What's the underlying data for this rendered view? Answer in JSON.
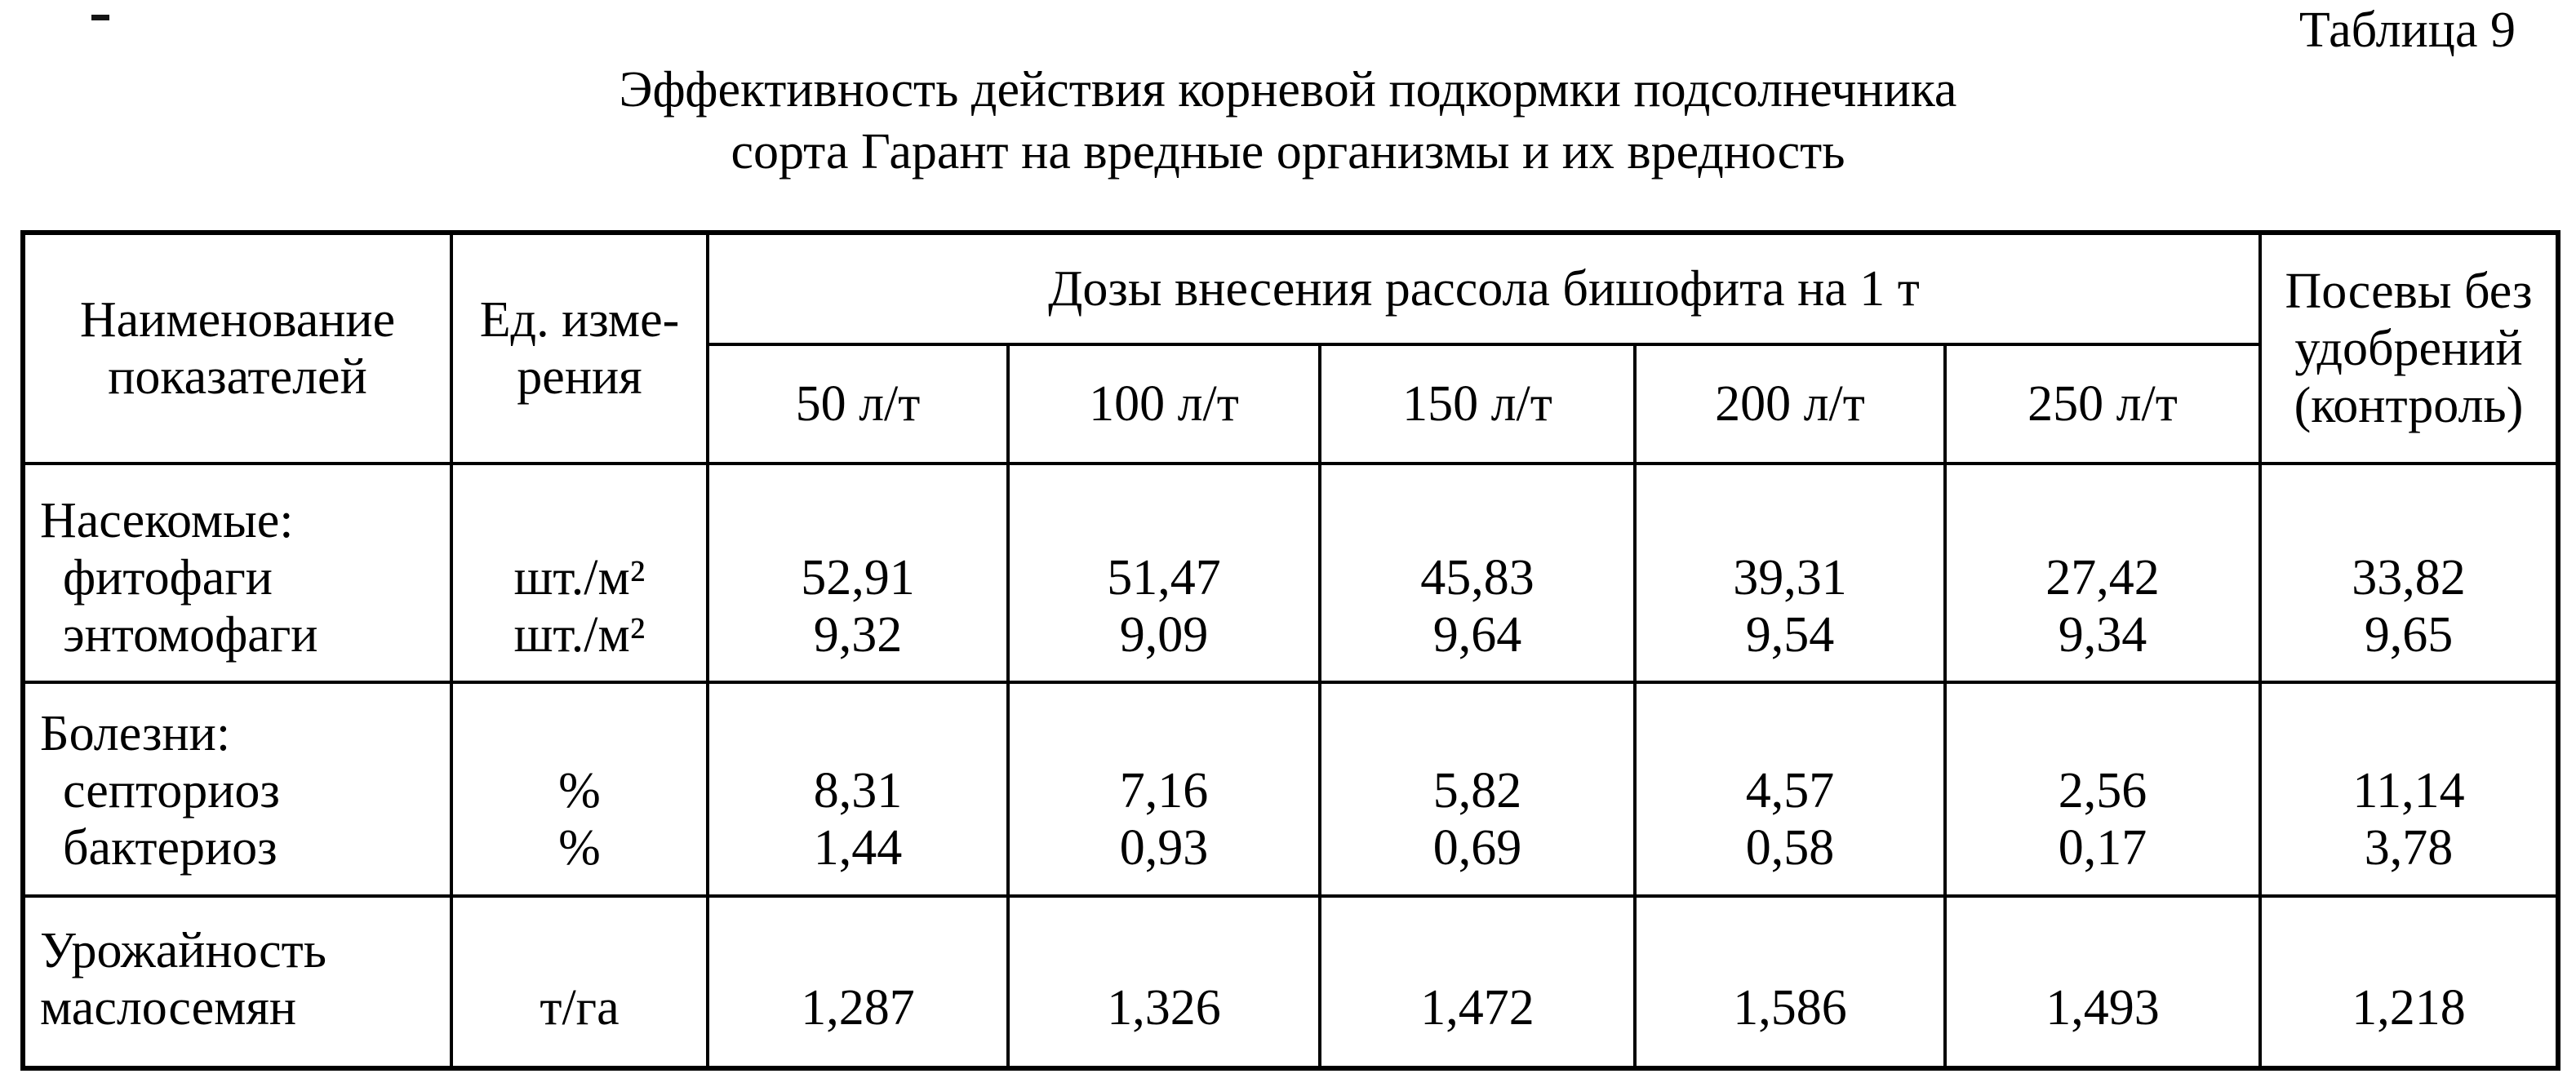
{
  "page": {
    "artifact_dash": "-",
    "table_label": "Таблица 9",
    "title_line1": "Эффективность действия корневой подкормки подсолнечника",
    "title_line2": "сорта Гарант на вредные организмы и их вредность"
  },
  "table": {
    "header": {
      "indicator_line1": "Наименование",
      "indicator_line2": "показателей",
      "unit_line1": "Ед. изме-",
      "unit_line2": "рения",
      "doses_span": "Дозы внесения рассола бишофита на 1 т",
      "dose_columns": [
        "50 л/т",
        "100 л/т",
        "150 л/т",
        "200 л/т",
        "250 л/т"
      ],
      "control_line1": "Посевы без",
      "control_line2": "удобрений",
      "control_line3": "(контроль)"
    },
    "sections": [
      {
        "group_label": "Насекомые:",
        "rows": [
          {
            "label": "фитофаги",
            "unit": "шт./м²",
            "values": [
              "52,91",
              "51,47",
              "45,83",
              "39,31",
              "27,42"
            ],
            "control": "33,82"
          },
          {
            "label": "энтомофаги",
            "unit": "шт./м²",
            "values": [
              "9,32",
              "9,09",
              "9,64",
              "9,54",
              "9,34"
            ],
            "control": "9,65"
          }
        ]
      },
      {
        "group_label": "Болезни:",
        "rows": [
          {
            "label": "септориоз",
            "unit": "%",
            "values": [
              "8,31",
              "7,16",
              "5,82",
              "4,57",
              "2,56"
            ],
            "control": "11,14"
          },
          {
            "label": "бактериоз",
            "unit": "%",
            "values": [
              "1,44",
              "0,93",
              "0,69",
              "0,58",
              "0,17"
            ],
            "control": "3,78"
          }
        ]
      },
      {
        "group_label": null,
        "rows": [
          {
            "label": "Урожайность",
            "unit": "",
            "values": [
              "",
              "",
              "",
              "",
              ""
            ],
            "control": ""
          },
          {
            "label": "маслосемян",
            "unit": "т/га",
            "values": [
              "1,287",
              "1,326",
              "1,472",
              "1,586",
              "1,493"
            ],
            "control": "1,218"
          }
        ]
      }
    ]
  }
}
